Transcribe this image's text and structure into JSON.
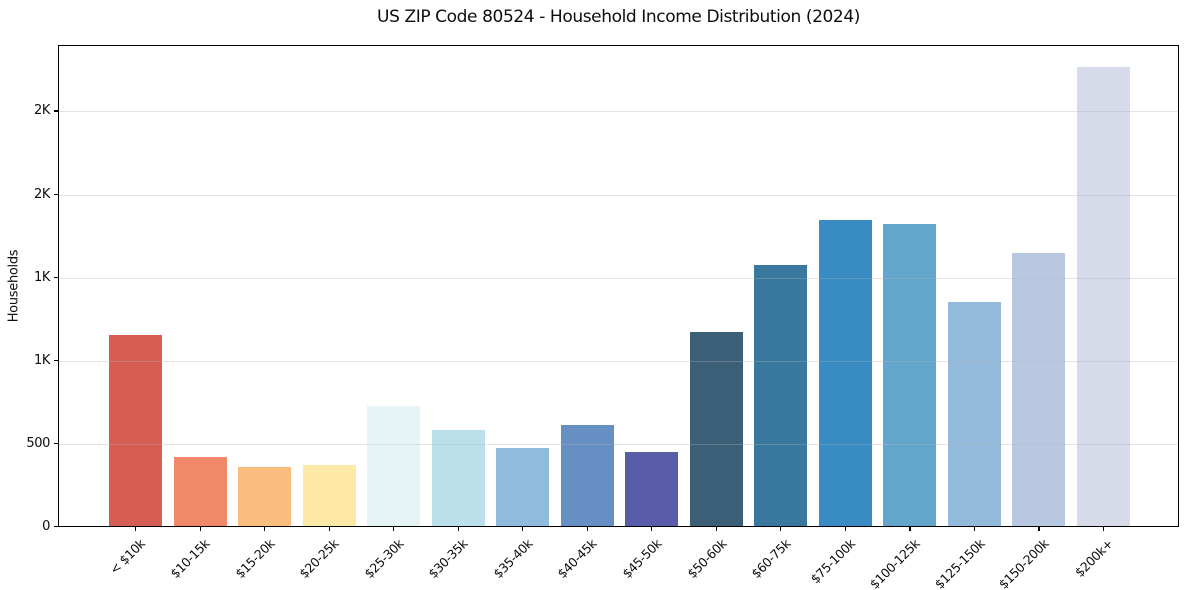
{
  "chart_data": {
    "type": "bar",
    "title": "US ZIP Code 80524 - Household Income Distribution (2024)",
    "xlabel": "",
    "ylabel": "Households",
    "legend": "none",
    "grid": "horizontal",
    "ylim": [
      0,
      2900
    ],
    "categories": [
      "< $10k",
      "$10-15k",
      "$15-20k",
      "$20-25k",
      "$25-30k",
      "$30-35k",
      "$35-40k",
      "$40-45k",
      "$45-50k",
      "$50-60k",
      "$60-75k",
      "$75-100k",
      "$100-125k",
      "$125-150k",
      "$150-200k",
      "$200k+"
    ],
    "values": [
      1150,
      415,
      355,
      365,
      725,
      580,
      470,
      610,
      445,
      1170,
      1570,
      1840,
      1815,
      1345,
      1645,
      2760
    ],
    "bar_colors": [
      "#d65d52",
      "#f2886a",
      "#fbbd7d",
      "#fde9a5",
      "#e7f4f6",
      "#bcdfec",
      "#8fbcdc",
      "#6690c4",
      "#595ca9",
      "#3a5f76",
      "#38789f",
      "#398cc3",
      "#62a6cc",
      "#93badb",
      "#b8c8e1",
      "#d7dae8"
    ],
    "yticks": [
      {
        "value": 0,
        "label": "0"
      },
      {
        "value": 500,
        "label": "500"
      },
      {
        "value": 1000,
        "label": "1K"
      },
      {
        "value": 1500,
        "label": "1K"
      },
      {
        "value": 2000,
        "label": "2K"
      },
      {
        "value": 2500,
        "label": "2K"
      }
    ],
    "colors": {
      "background": "#ffffff",
      "spine": "#000000",
      "grid": "#e9e9e9",
      "text": "#0d0d0d"
    }
  }
}
